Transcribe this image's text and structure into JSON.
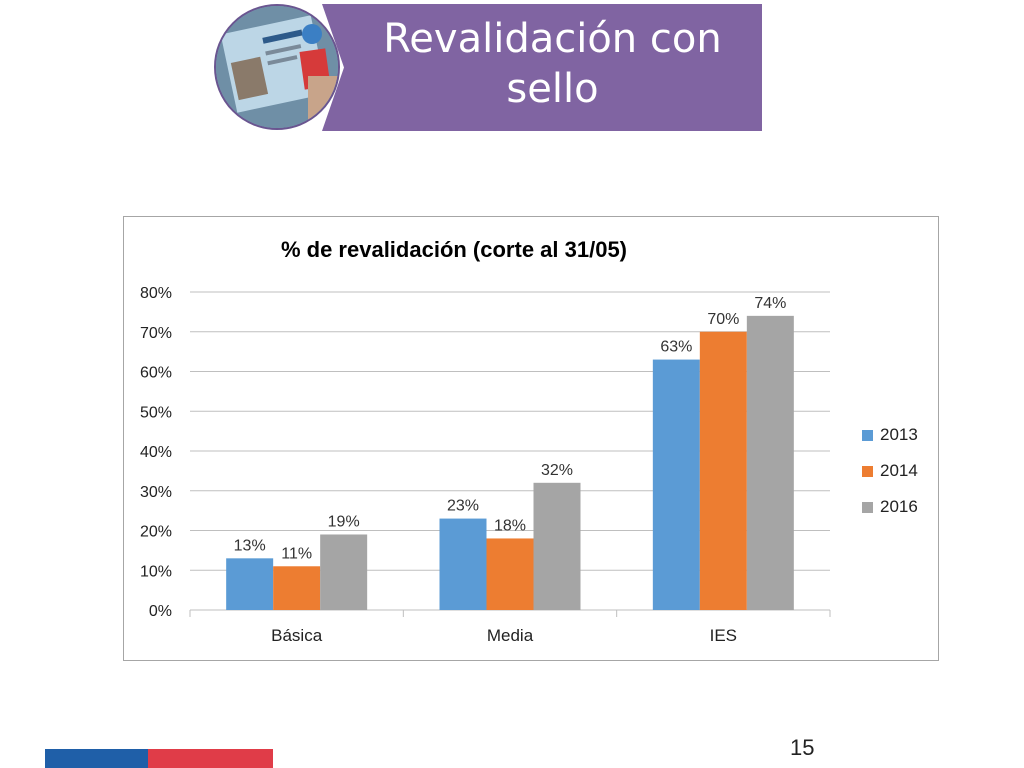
{
  "header": {
    "title": "Revalidación con sello",
    "banner_color": "#8064a2",
    "photo_icon": "student-id-card-photo"
  },
  "chart_data": {
    "type": "bar",
    "title": "% de revalidación (corte al 31/05)",
    "categories": [
      "Básica",
      "Media",
      "IES"
    ],
    "series": [
      {
        "name": "2013",
        "values": [
          13,
          23,
          63
        ],
        "labels": [
          "13%",
          "23%",
          "63%"
        ],
        "color": "#5b9bd5"
      },
      {
        "name": "2014",
        "values": [
          11,
          18,
          70
        ],
        "labels": [
          "11%",
          "18%",
          "70%"
        ],
        "color": "#ed7d31"
      },
      {
        "name": "2016",
        "values": [
          19,
          32,
          74
        ],
        "labels": [
          "19%",
          "32%",
          "74%"
        ],
        "color": "#a5a5a5"
      }
    ],
    "ylim": [
      0,
      80
    ],
    "yticks": [
      0,
      10,
      20,
      30,
      40,
      50,
      60,
      70,
      80
    ],
    "ytick_labels": [
      "0%",
      "10%",
      "20%",
      "30%",
      "40%",
      "50%",
      "60%",
      "70%",
      "80%"
    ],
    "xlabel": "",
    "ylabel": "",
    "grid": true,
    "legend_position": "right"
  },
  "footer": {
    "page_number": "15"
  }
}
